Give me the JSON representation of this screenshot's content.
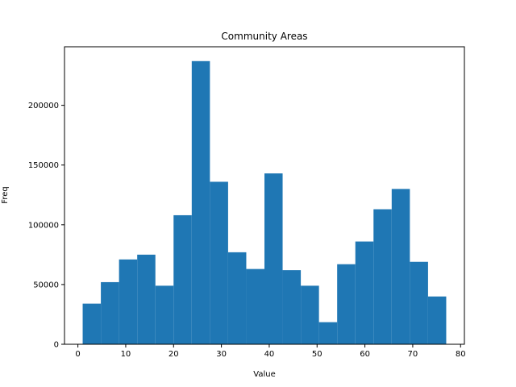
{
  "chart_data": {
    "type": "bar",
    "title": "Community Areas",
    "xlabel": "Value",
    "ylabel": "Freq",
    "bar_color": "#1f77b4",
    "bin_start": 1,
    "bin_end": 77,
    "xlim": [
      -2.8,
      80.8
    ],
    "ylim": [
      0,
      249000
    ],
    "xticks": [
      0,
      10,
      20,
      30,
      40,
      50,
      60,
      70,
      80
    ],
    "yticks": [
      0,
      50000,
      100000,
      150000,
      200000
    ],
    "grid": false,
    "legend": "none",
    "values": [
      34000,
      52000,
      71000,
      75000,
      49000,
      108000,
      237000,
      136000,
      77000,
      63000,
      143000,
      62000,
      49000,
      18500,
      67000,
      86000,
      113000,
      130000,
      69000,
      40000
    ]
  }
}
